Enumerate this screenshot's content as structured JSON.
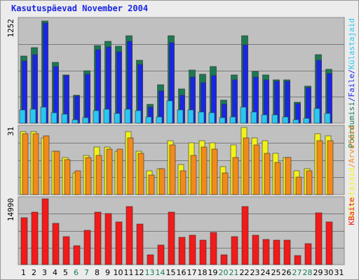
{
  "chart_data": {
    "type": "bar",
    "title": "Kasutuspäevad November 2004",
    "categories": [
      "1",
      "2",
      "3",
      "4",
      "5",
      "6",
      "7",
      "8",
      "9",
      "10",
      "11",
      "12",
      "13",
      "14",
      "15",
      "16",
      "17",
      "18",
      "19",
      "20",
      "21",
      "22",
      "23",
      "24",
      "25",
      "26",
      "27",
      "28",
      "29",
      "30",
      "31"
    ],
    "weekend_days": [
      "6",
      "7",
      "13",
      "14",
      "20",
      "21",
      "27",
      "28"
    ],
    "panels": [
      {
        "name": "top",
        "ymax_label": "1252",
        "ymax": 1252,
        "series": [
          {
            "name": "Pöördumisi",
            "color": "#1b7a52",
            "values": [
              820,
              920,
              1252,
              740,
              590,
              340,
              640,
              950,
              1000,
              940,
              1070,
              770,
              230,
              470,
              1070,
              420,
              650,
              600,
              690,
              280,
              590,
              1070,
              630,
              590,
              530,
              530,
              260,
              450,
              840,
              660,
              0
            ]
          },
          {
            "name": "Faile",
            "color": "#1a26e6",
            "values": [
              760,
              840,
              1220,
              690,
              580,
              330,
              600,
              900,
              930,
              870,
              1000,
              720,
              200,
              390,
              980,
              340,
              560,
              500,
              580,
              230,
              530,
              960,
              560,
              530,
              510,
              510,
              240,
              440,
              770,
              610,
              0
            ]
          },
          {
            "name": "Külastajaid",
            "color": "#28c8f2",
            "values": [
              160,
              170,
              200,
              130,
              110,
              40,
              70,
              150,
              170,
              120,
              170,
              150,
              80,
              80,
              270,
              160,
              160,
              140,
              130,
              70,
              80,
              200,
              140,
              100,
              100,
              80,
              40,
              60,
              180,
              120,
              0
            ]
          }
        ]
      },
      {
        "name": "middle",
        "ymax_label": "31",
        "ymax": 31,
        "series": [
          {
            "name": "Külastajaid",
            "color": "#f2f21a",
            "values": [
              29,
              29,
              26,
              20,
              17,
              10,
              18,
              22,
              22,
              20,
              29,
              20,
              11,
              12,
              25,
              14,
              24,
              25,
              24,
              13,
              23,
              31,
              26,
              25,
              19,
              17,
              11,
              12,
              28,
              27,
              0
            ]
          },
          {
            "name": "Arvuteid",
            "color": "#f28a1a",
            "values": [
              28,
              28,
              27,
              20,
              16,
              11,
              17,
              18,
              21,
              21,
              26,
              19,
              9,
              12,
              23,
              11,
              18,
              22,
              21,
              10,
              17,
              26,
              23,
              19,
              15,
              17,
              8,
              11,
              25,
              25,
              0
            ]
          }
        ]
      },
      {
        "name": "bottom",
        "ymax_label": "14990",
        "ymax": 14990,
        "series": [
          {
            "name": "KBaite",
            "color": "#f21a1a",
            "values": [
              10700,
              12000,
              14990,
              9400,
              6300,
              4300,
              7800,
              11900,
              11600,
              9700,
              13300,
              9200,
              2300,
              4500,
              12000,
              6200,
              6700,
              5600,
              7400,
              2300,
              6300,
              13200,
              6700,
              5800,
              5600,
              5600,
              2000,
              4800,
              11800,
              9700,
              0
            ]
          }
        ]
      }
    ],
    "right_labels": {
      "top": [
        {
          "text": "Pöördumisi",
          "color": "#1b7a52"
        },
        {
          "text": "/",
          "color": "#1a26e6"
        },
        {
          "text": "Faile",
          "color": "#1a26e6"
        },
        {
          "text": "/",
          "color": "#1a26e6"
        },
        {
          "text": "Külastajaid",
          "color": "#28c8f2"
        }
      ],
      "middle": [
        {
          "text": "Külastajaid",
          "color": "#f2f21a"
        },
        {
          "text": "/",
          "color": "#f28a1a"
        },
        {
          "text": "Arvuteid",
          "color": "#f28a1a"
        }
      ],
      "bottom": [
        {
          "text": "KBaite",
          "color": "#f21a1a"
        }
      ]
    },
    "colors": {
      "title": "#1a26e6",
      "weekday_label": "#000000",
      "weekend_label": "#1b7a52",
      "plot_bg": "#c0c0c0",
      "grid": "#7a7a7a"
    },
    "grid": true
  }
}
